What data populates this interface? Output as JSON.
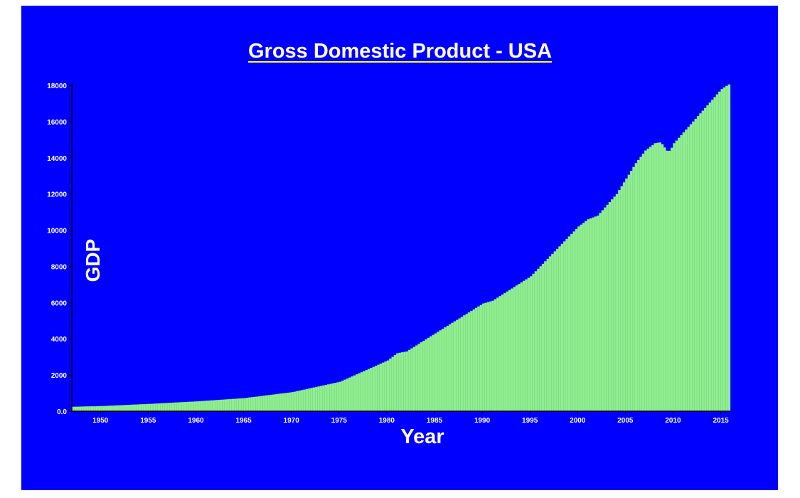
{
  "chart_data": {
    "type": "bar",
    "title": "Gross Domestic Product - USA",
    "xlabel": "Year",
    "ylabel": "GDP",
    "ylim": [
      0,
      18000
    ],
    "xlim": [
      1947,
      2016
    ],
    "y_tick_labels": [
      "0.0",
      "2000",
      "4000",
      "6000",
      "8000",
      "10000",
      "12000",
      "14000",
      "16000",
      "18000"
    ],
    "x_tick_labels": [
      "1950",
      "1955",
      "1960",
      "1965",
      "1970",
      "1975",
      "1980",
      "1985",
      "1990",
      "1995",
      "2000",
      "2005",
      "2010",
      "2015"
    ],
    "grid": false,
    "frequency": "quarterly",
    "anchors": [
      [
        1947,
        243
      ],
      [
        1950,
        280
      ],
      [
        1955,
        400
      ],
      [
        1960,
        540
      ],
      [
        1965,
        720
      ],
      [
        1970,
        1050
      ],
      [
        1975,
        1620
      ],
      [
        1980,
        2800
      ],
      [
        1981,
        3200
      ],
      [
        1982,
        3300
      ],
      [
        1985,
        4300
      ],
      [
        1990,
        5950
      ],
      [
        1991,
        6100
      ],
      [
        1995,
        7450
      ],
      [
        2000,
        10200
      ],
      [
        2001,
        10600
      ],
      [
        2002,
        10800
      ],
      [
        2004,
        12000
      ],
      [
        2006,
        13700
      ],
      [
        2007,
        14400
      ],
      [
        2008,
        14800
      ],
      [
        2008.6,
        14850
      ],
      [
        2009.3,
        14350
      ],
      [
        2009.6,
        14400
      ],
      [
        2010,
        14800
      ],
      [
        2012,
        16000
      ],
      [
        2014,
        17200
      ],
      [
        2015,
        17800
      ],
      [
        2015.75,
        18050
      ]
    ],
    "colors": {
      "background": "#0000ff",
      "bars": "#90ee90",
      "bar_edge": "#6fcf72",
      "text": "#ffffff",
      "axis": "#000000",
      "title_underline": "#ffff00"
    }
  }
}
